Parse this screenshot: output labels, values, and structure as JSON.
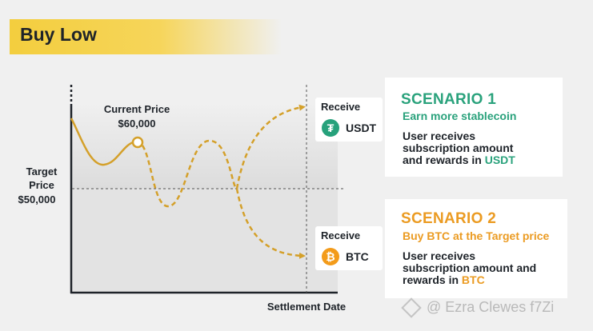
{
  "title": "Buy Low",
  "chart": {
    "current_price_label": "Current Price",
    "current_price_value": "$60,000",
    "target_label_line1": "Target",
    "target_label_line2": "Price",
    "target_value": "$50,000",
    "x_axis_label": "Settlement Date"
  },
  "receive": [
    {
      "label": "Receive",
      "coin": "USDT",
      "icon": "usdt-icon"
    },
    {
      "label": "Receive",
      "coin": "BTC",
      "icon": "btc-icon"
    }
  ],
  "scenarios": [
    {
      "title": "SCENARIO 1",
      "subtitle": "Earn more stablecoin",
      "body_line1": "User receives",
      "body_line2": "subscription amount",
      "body_line3_prefix": "and rewards in ",
      "body_line3_highlight": "USDT"
    },
    {
      "title": "SCENARIO 2",
      "subtitle": "Buy BTC at the Target price",
      "body_line1": "User receives",
      "body_line2": "subscription amount and",
      "body_line3_prefix": "rewards in ",
      "body_line3_highlight": "BTC"
    }
  ],
  "watermark": "@ Ezra Clewes f7Zi",
  "colors": {
    "accent_yellow": "#f3ce3e",
    "curve_gold": "#d4a02a",
    "usdt_green": "#2aa27c",
    "btc_orange": "#eb9b22"
  }
}
